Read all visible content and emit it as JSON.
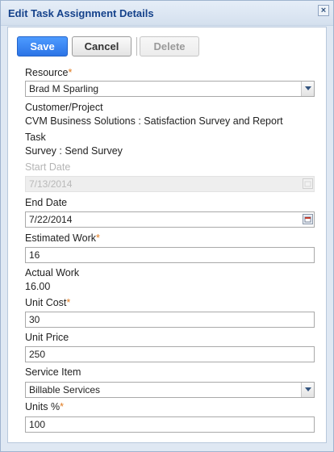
{
  "dialog": {
    "title": "Edit Task Assignment Details",
    "close_glyph": "×"
  },
  "toolbar": {
    "save": "Save",
    "cancel": "Cancel",
    "delete": "Delete"
  },
  "colors": {
    "accent": "#2c74e6",
    "required": "#e07a1f",
    "title": "#15428b"
  },
  "fields": {
    "resource": {
      "label": "Resource",
      "value": "Brad  M  Sparling"
    },
    "customer_project": {
      "label": "Customer/Project",
      "value": "CVM Business Solutions : Satisfaction Survey and Report"
    },
    "task": {
      "label": "Task",
      "value": "Survey : Send Survey"
    },
    "start_date": {
      "label": "Start Date",
      "value": "7/13/2014"
    },
    "end_date": {
      "label": "End Date",
      "value": "7/22/2014"
    },
    "estimated_work": {
      "label": "Estimated Work",
      "value": "16"
    },
    "actual_work": {
      "label": "Actual Work",
      "value": "16.00"
    },
    "unit_cost": {
      "label": "Unit Cost",
      "value": "30"
    },
    "unit_price": {
      "label": "Unit Price",
      "value": "250"
    },
    "service_item": {
      "label": "Service Item",
      "value": "Billable Services"
    },
    "units_pct": {
      "label": "Units %",
      "value": "100"
    },
    "required_marker": "*"
  },
  "icons": {
    "close": "close-icon",
    "dropdown": "chevron-down-icon",
    "calendar": "calendar-icon"
  }
}
